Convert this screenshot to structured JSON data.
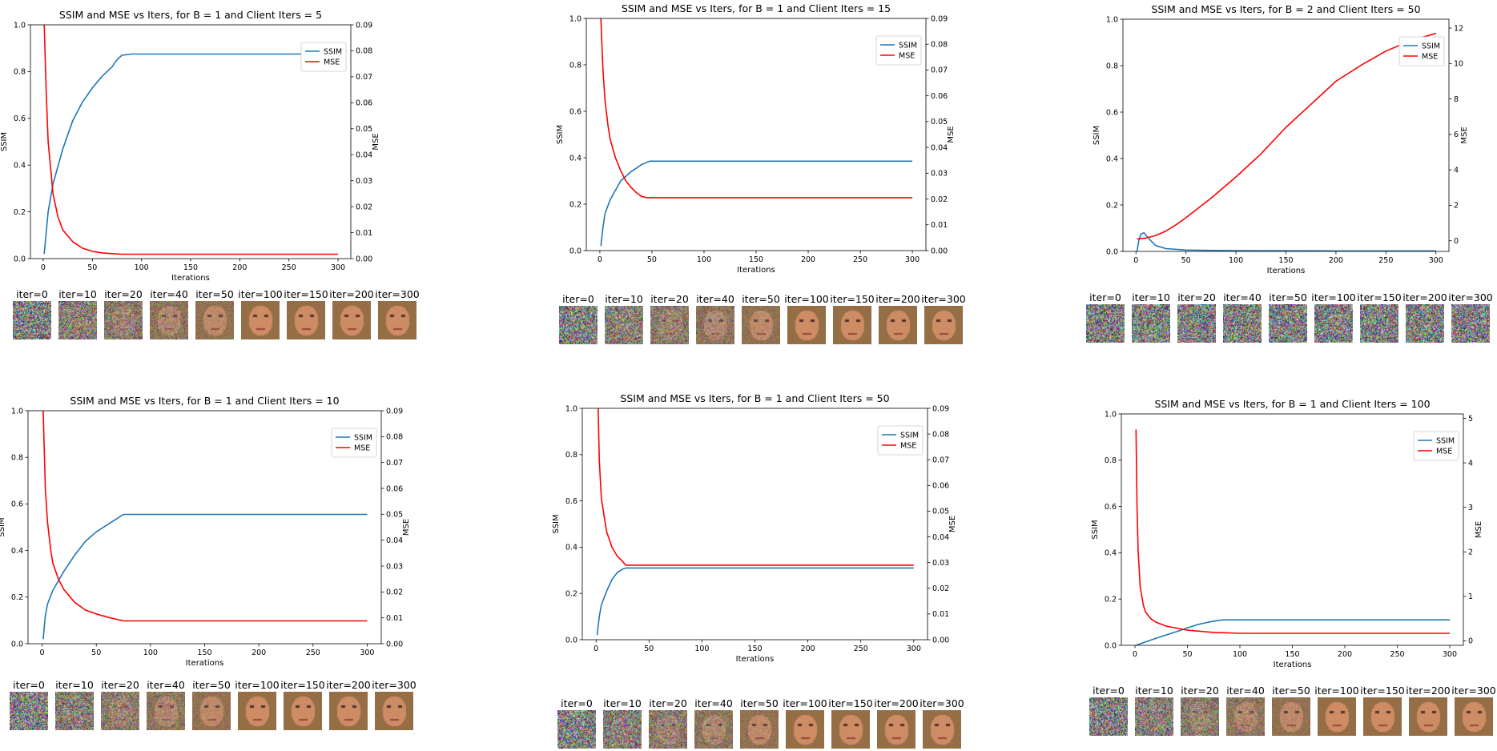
{
  "colors": {
    "ssim": "#1f77b4",
    "mse": "#ff0000",
    "axis": "#000000"
  },
  "thumb_labels": [
    "iter=0",
    "iter=10",
    "iter=20",
    "iter=40",
    "iter=50",
    "iter=100",
    "iter=150",
    "iter=200",
    "iter=300"
  ],
  "chart_data": [
    {
      "type": "line",
      "title": "SSIM and MSE vs Iters, for B = 1 and Client Iters = 5",
      "xlabel": "Iterations",
      "ylabel": "SSIM",
      "y2label": "MSE",
      "xlim": [
        -13,
        313
      ],
      "ylim": [
        0,
        1.0
      ],
      "y2lim": [
        0,
        0.09
      ],
      "xticks": [
        0,
        50,
        100,
        150,
        200,
        250,
        300
      ],
      "yticks": [
        0.0,
        0.2,
        0.4,
        0.6,
        0.8,
        1.0
      ],
      "y2ticks": [
        0.0,
        0.01,
        0.02,
        0.03,
        0.04,
        0.05,
        0.06,
        0.07,
        0.08,
        0.09
      ],
      "legend": "upper right",
      "series": [
        {
          "name": "SSIM",
          "axis": "left",
          "x": [
            1,
            5,
            10,
            20,
            30,
            40,
            50,
            60,
            70,
            75,
            80,
            90,
            300
          ],
          "values": [
            0.02,
            0.2,
            0.32,
            0.47,
            0.59,
            0.67,
            0.73,
            0.78,
            0.82,
            0.85,
            0.87,
            0.875,
            0.875
          ]
        },
        {
          "name": "MSE",
          "axis": "right",
          "x": [
            1,
            3,
            5,
            10,
            15,
            20,
            30,
            40,
            50,
            60,
            70,
            80,
            100,
            300
          ],
          "values": [
            0.09,
            0.065,
            0.045,
            0.025,
            0.016,
            0.011,
            0.0065,
            0.004,
            0.0028,
            0.0022,
            0.0019,
            0.0017,
            0.0017,
            0.0017
          ]
        }
      ]
    },
    {
      "type": "line",
      "title": "SSIM and MSE vs Iters, for B = 1 and Client Iters = 15",
      "xlabel": "Iterations",
      "ylabel": "SSIM",
      "y2label": "MSE",
      "xlim": [
        -13,
        313
      ],
      "ylim": [
        0,
        1.0
      ],
      "y2lim": [
        0,
        0.09
      ],
      "xticks": [
        0,
        50,
        100,
        150,
        200,
        250,
        300
      ],
      "yticks": [
        0.0,
        0.2,
        0.4,
        0.6,
        0.8,
        1.0
      ],
      "y2ticks": [
        0.0,
        0.01,
        0.02,
        0.03,
        0.04,
        0.05,
        0.06,
        0.07,
        0.08,
        0.09
      ],
      "legend": "upper right",
      "series": [
        {
          "name": "SSIM",
          "axis": "left",
          "x": [
            1,
            3,
            5,
            10,
            15,
            20,
            30,
            40,
            45,
            48,
            300
          ],
          "values": [
            0.02,
            0.1,
            0.16,
            0.22,
            0.26,
            0.3,
            0.34,
            0.37,
            0.38,
            0.385,
            0.385
          ]
        },
        {
          "name": "MSE",
          "axis": "right",
          "x": [
            1,
            3,
            5,
            8,
            10,
            15,
            20,
            25,
            30,
            35,
            40,
            45,
            50,
            300
          ],
          "values": [
            0.09,
            0.07,
            0.058,
            0.048,
            0.043,
            0.036,
            0.031,
            0.027,
            0.0245,
            0.0225,
            0.021,
            0.0205,
            0.0205,
            0.0205
          ]
        }
      ]
    },
    {
      "type": "line",
      "title": "SSIM and MSE vs Iters, for B = 2 and Client Iters = 50",
      "xlabel": "Iterations",
      "ylabel": "SSIM",
      "y2label": "MSE",
      "xlim": [
        -13,
        313
      ],
      "ylim": [
        0,
        1.0
      ],
      "y2lim": [
        -0.6,
        12.5
      ],
      "xticks": [
        0,
        50,
        100,
        150,
        200,
        250,
        300
      ],
      "yticks": [
        0.0,
        0.2,
        0.4,
        0.6,
        0.8,
        1.0
      ],
      "y2ticks": [
        0,
        2,
        4,
        6,
        8,
        10,
        12
      ],
      "legend": "upper right",
      "series": [
        {
          "name": "SSIM",
          "axis": "left",
          "x": [
            1,
            3,
            5,
            8,
            10,
            15,
            20,
            30,
            50,
            100,
            200,
            300
          ],
          "values": [
            0.0,
            0.05,
            0.075,
            0.08,
            0.07,
            0.045,
            0.025,
            0.012,
            0.006,
            0.003,
            0.002,
            0.002
          ]
        },
        {
          "name": "MSE",
          "axis": "right",
          "x": [
            1,
            10,
            20,
            30,
            40,
            50,
            75,
            100,
            125,
            150,
            175,
            200,
            225,
            250,
            275,
            300
          ],
          "values": [
            0.1,
            0.15,
            0.3,
            0.55,
            0.9,
            1.3,
            2.4,
            3.6,
            4.9,
            6.4,
            7.7,
            9.0,
            9.9,
            10.7,
            11.3,
            11.7
          ]
        }
      ]
    },
    {
      "type": "line",
      "title": "SSIM and MSE vs Iters, for B = 1 and Client Iters = 10",
      "xlabel": "Iterations",
      "ylabel": "SSIM",
      "y2label": "MSE",
      "xlim": [
        -13,
        313
      ],
      "ylim": [
        0,
        1.0
      ],
      "y2lim": [
        0,
        0.09
      ],
      "xticks": [
        0,
        50,
        100,
        150,
        200,
        250,
        300
      ],
      "yticks": [
        0.0,
        0.2,
        0.4,
        0.6,
        0.8,
        1.0
      ],
      "y2ticks": [
        0.0,
        0.01,
        0.02,
        0.03,
        0.04,
        0.05,
        0.06,
        0.07,
        0.08,
        0.09
      ],
      "legend": "upper right",
      "series": [
        {
          "name": "SSIM",
          "axis": "left",
          "x": [
            1,
            3,
            5,
            10,
            20,
            30,
            40,
            50,
            60,
            70,
            75,
            300
          ],
          "values": [
            0.02,
            0.12,
            0.17,
            0.23,
            0.31,
            0.38,
            0.44,
            0.48,
            0.51,
            0.54,
            0.555,
            0.555
          ]
        },
        {
          "name": "MSE",
          "axis": "right",
          "x": [
            1,
            3,
            5,
            8,
            10,
            15,
            20,
            30,
            40,
            50,
            60,
            70,
            75,
            300
          ],
          "values": [
            0.09,
            0.06,
            0.047,
            0.036,
            0.031,
            0.025,
            0.021,
            0.016,
            0.013,
            0.0115,
            0.0103,
            0.0093,
            0.0088,
            0.0088
          ]
        }
      ]
    },
    {
      "type": "line",
      "title": "SSIM and MSE vs Iters, for B = 1 and Client Iters = 50",
      "xlabel": "Iterations",
      "ylabel": "SSIM",
      "y2label": "MSE",
      "xlim": [
        -13,
        313
      ],
      "ylim": [
        0,
        1.0
      ],
      "y2lim": [
        0,
        0.09
      ],
      "xticks": [
        0,
        50,
        100,
        150,
        200,
        250,
        300
      ],
      "yticks": [
        0.0,
        0.2,
        0.4,
        0.6,
        0.8,
        1.0
      ],
      "y2ticks": [
        0.0,
        0.01,
        0.02,
        0.03,
        0.04,
        0.05,
        0.06,
        0.07,
        0.08,
        0.09
      ],
      "legend": "upper right",
      "series": [
        {
          "name": "SSIM",
          "axis": "left",
          "x": [
            1,
            3,
            5,
            10,
            15,
            20,
            25,
            28,
            30,
            300
          ],
          "values": [
            0.02,
            0.1,
            0.15,
            0.21,
            0.26,
            0.29,
            0.305,
            0.31,
            0.31,
            0.31
          ]
        },
        {
          "name": "MSE",
          "axis": "right",
          "x": [
            2,
            3,
            5,
            8,
            10,
            15,
            20,
            25,
            28,
            300
          ],
          "values": [
            0.09,
            0.07,
            0.055,
            0.047,
            0.042,
            0.036,
            0.0325,
            0.0305,
            0.029,
            0.029
          ]
        }
      ]
    },
    {
      "type": "line",
      "title": "SSIM and MSE vs Iters, for B = 1 and Client Iters = 100",
      "xlabel": "Iterations",
      "ylabel": "SSIM",
      "y2label": "MSE",
      "xlim": [
        -13,
        313
      ],
      "ylim": [
        0,
        1.0
      ],
      "y2lim": [
        -0.1,
        5.1
      ],
      "xticks": [
        0,
        50,
        100,
        150,
        200,
        250,
        300
      ],
      "yticks": [
        0.0,
        0.2,
        0.4,
        0.6,
        0.8,
        1.0
      ],
      "y2ticks": [
        0,
        1,
        2,
        3,
        4,
        5
      ],
      "legend": "upper right",
      "series": [
        {
          "name": "SSIM",
          "axis": "left",
          "x": [
            1,
            10,
            20,
            30,
            40,
            50,
            60,
            70,
            80,
            85,
            300
          ],
          "values": [
            0.0,
            0.015,
            0.03,
            0.045,
            0.06,
            0.075,
            0.09,
            0.1,
            0.108,
            0.11,
            0.11
          ]
        },
        {
          "name": "MSE",
          "axis": "right",
          "x": [
            1,
            2,
            3,
            5,
            8,
            10,
            15,
            20,
            30,
            50,
            75,
            100,
            300
          ],
          "values": [
            4.75,
            3.0,
            2.0,
            1.2,
            0.8,
            0.65,
            0.5,
            0.42,
            0.33,
            0.24,
            0.19,
            0.17,
            0.17
          ]
        }
      ]
    }
  ]
}
